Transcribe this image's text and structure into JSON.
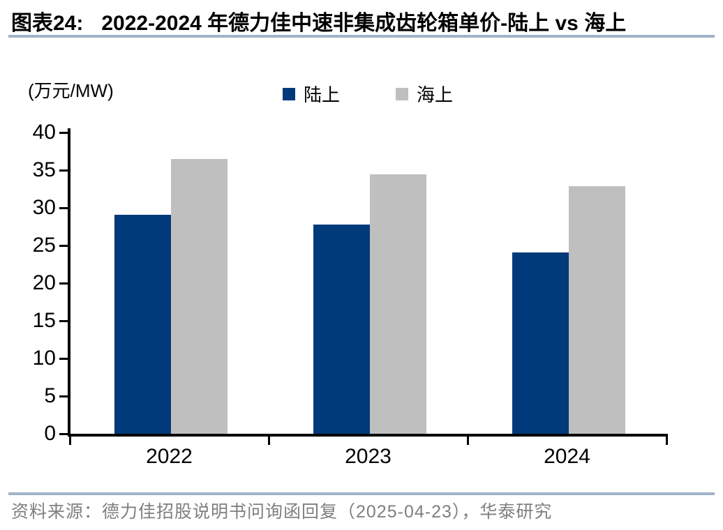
{
  "header": {
    "figure_label": "图表24:",
    "title": "2022-2024 年德力佳中速非集成齿轮箱单价-陆上 vs 海上"
  },
  "chart_data": {
    "type": "bar",
    "title": "2022-2024 年德力佳中速非集成齿轮箱单价-陆上 vs 海上",
    "unit_label": "(万元/MW)",
    "ylabel": "万元/MW",
    "categories": [
      "2022",
      "2023",
      "2024"
    ],
    "series": [
      {
        "name": "陆上",
        "color": "#003a7a",
        "values": [
          29.1,
          27.8,
          24.1
        ]
      },
      {
        "name": "海上",
        "color": "#bfbfbf",
        "values": [
          36.5,
          34.4,
          32.9
        ]
      }
    ],
    "ylim": [
      0,
      40
    ],
    "yticks": [
      0,
      5,
      10,
      15,
      20,
      25,
      30,
      35,
      40
    ],
    "legend_position": "top-center",
    "grid": false
  },
  "footer": {
    "source": "资料来源：德力佳招股说明书问询函回复（2025-04-23），华泰研究"
  },
  "colors": {
    "onshore_bar": "#003a7a",
    "offshore_bar": "#bfbfbf",
    "accent_line": "#a0b4c8",
    "axis": "#000000",
    "footer_text": "#7f7f7f",
    "title_text": "#000000"
  }
}
